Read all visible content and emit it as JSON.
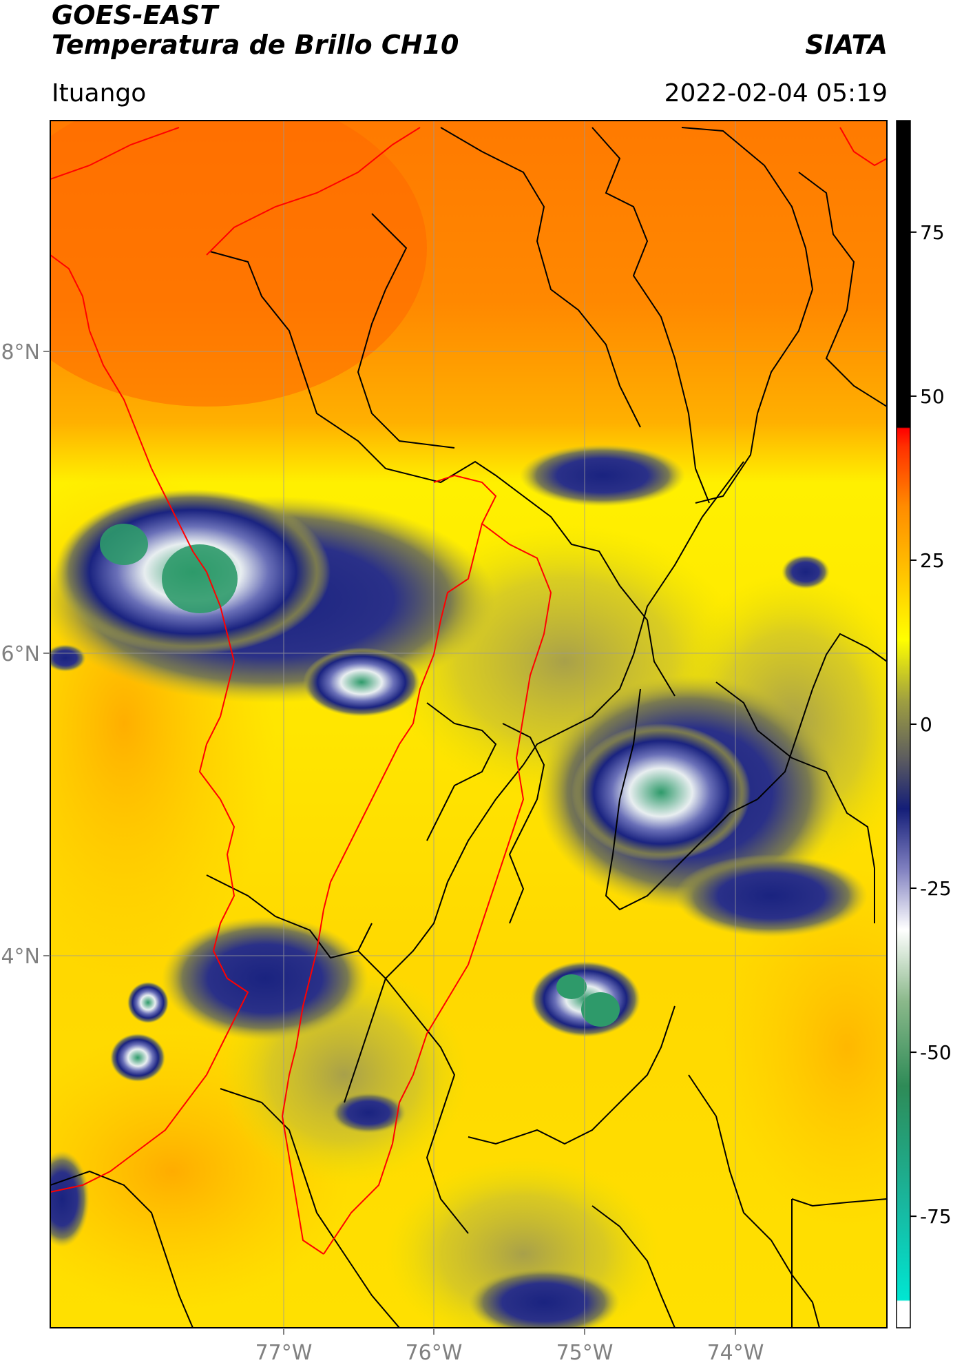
{
  "header": {
    "satellite": "GOES-EAST",
    "product": "Temperatura de Brillo CH10",
    "brand": "SIATA",
    "region": "Ituango",
    "timestamp": "2022-02-04 05:19"
  },
  "map": {
    "lon_ticks": [
      "77°W",
      "76°W",
      "75°W",
      "74°W"
    ],
    "lat_ticks": [
      "8°N",
      "6°N",
      "4°N"
    ]
  },
  "colorbar": {
    "ticks": [
      "75",
      "50",
      "25",
      "0",
      "-25",
      "-50",
      "-75"
    ],
    "tick_values": [
      75,
      50,
      25,
      0,
      -25,
      -50,
      -75
    ],
    "range": [
      -92,
      92
    ],
    "colors": {
      "warm_black": "#000000",
      "red": "#ff1a00",
      "orange": "#ff8c00",
      "yellow": "#ffff00",
      "olive": "#8c8c3c",
      "navy": "#141e78",
      "white": "#ffffff",
      "green": "#2e8b57",
      "cyan": "#00e6d2"
    }
  },
  "colors": {
    "country_border": "#ff0000",
    "admin_border": "#000000",
    "grid": "#9a9a9a"
  }
}
